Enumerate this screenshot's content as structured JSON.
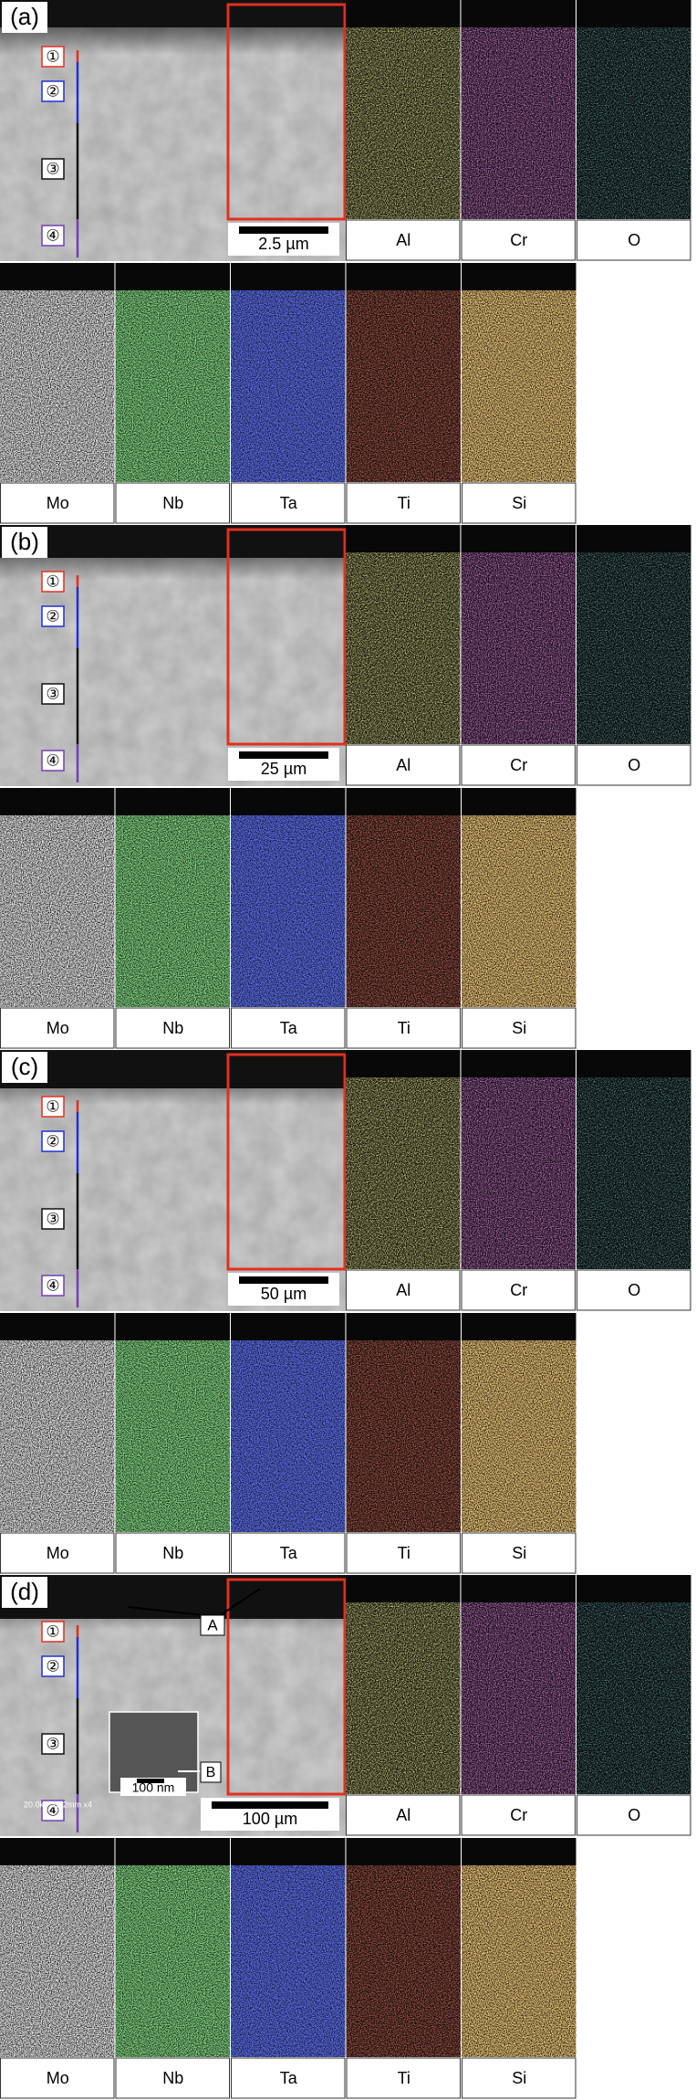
{
  "panels": [
    {
      "label": "(a)",
      "layers": [
        "①",
        "②",
        "③",
        "④"
      ],
      "scale_bar": "2.5 µm",
      "maps": [
        "Al",
        "Cr",
        "O",
        "Mo",
        "Nb",
        "Ta",
        "Ti",
        "Si"
      ]
    },
    {
      "label": "(b)",
      "layers": [
        "①",
        "②",
        "③",
        "④"
      ],
      "scale_bar": "25 µm",
      "maps": [
        "Al",
        "Cr",
        "O",
        "Mo",
        "Nb",
        "Ta",
        "Ti",
        "Si"
      ]
    },
    {
      "label": "(c)",
      "layers": [
        "①",
        "②",
        "③",
        "④"
      ],
      "scale_bar": "50 µm",
      "maps": [
        "Al",
        "Cr",
        "O",
        "Mo",
        "Nb",
        "Ta",
        "Ti",
        "Si"
      ]
    },
    {
      "label": "(d)",
      "layers": [
        "①",
        "②",
        "③",
        "④"
      ],
      "scale_bar": "100 µm",
      "maps": [
        "Al",
        "Cr",
        "O",
        "Mo",
        "Nb",
        "Ta",
        "Ti",
        "Si"
      ],
      "annotations": [
        "A",
        "B"
      ],
      "inset_scale": "100 nm",
      "instrument_text": "20.0kV 12.2mm x4"
    }
  ]
}
